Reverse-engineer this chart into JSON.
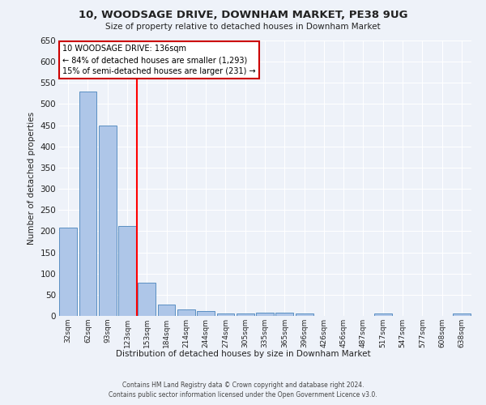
{
  "title": "10, WOODSAGE DRIVE, DOWNHAM MARKET, PE38 9UG",
  "subtitle": "Size of property relative to detached houses in Downham Market",
  "xlabel": "Distribution of detached houses by size in Downham Market",
  "ylabel": "Number of detached properties",
  "categories": [
    "32sqm",
    "62sqm",
    "93sqm",
    "123sqm",
    "153sqm",
    "184sqm",
    "214sqm",
    "244sqm",
    "274sqm",
    "305sqm",
    "335sqm",
    "365sqm",
    "396sqm",
    "426sqm",
    "456sqm",
    "487sqm",
    "517sqm",
    "547sqm",
    "577sqm",
    "608sqm",
    "638sqm"
  ],
  "values": [
    208,
    530,
    450,
    212,
    78,
    27,
    15,
    12,
    5,
    5,
    8,
    8,
    6,
    0,
    0,
    0,
    5,
    0,
    0,
    0,
    5
  ],
  "bar_color": "#aec6e8",
  "bar_edge_color": "#5a8fc2",
  "background_color": "#eef2f9",
  "grid_color": "#ffffff",
  "annotation_text": "10 WOODSAGE DRIVE: 136sqm\n← 84% of detached houses are smaller (1,293)\n15% of semi-detached houses are larger (231) →",
  "annotation_box_color": "#ffffff",
  "annotation_box_edge_color": "#cc0000",
  "ylim": [
    0,
    650
  ],
  "yticks": [
    0,
    50,
    100,
    150,
    200,
    250,
    300,
    350,
    400,
    450,
    500,
    550,
    600,
    650
  ],
  "red_line_x": 3.5,
  "footer_line1": "Contains HM Land Registry data © Crown copyright and database right 2024.",
  "footer_line2": "Contains public sector information licensed under the Open Government Licence v3.0."
}
